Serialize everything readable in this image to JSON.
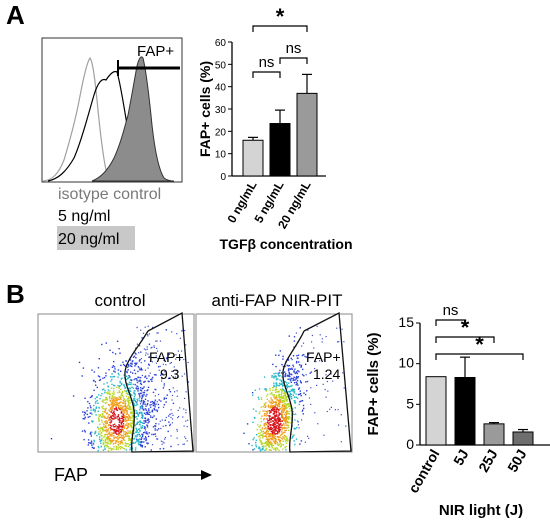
{
  "panel_labels": {
    "a": "A",
    "b": "B"
  },
  "panel_a": {
    "histogram": {
      "gate_label": "FAP+",
      "legend": [
        {
          "label": "isotype control",
          "color": "#7a7a7a",
          "shaded": false
        },
        {
          "label": "5 ng/ml",
          "color": "#000000",
          "shaded": false
        },
        {
          "label": "20 ng/ml",
          "color": "#000000",
          "shaded": true
        }
      ]
    }
  },
  "panel_b": {
    "flow": {
      "titles": {
        "left": "control",
        "right": "anti-FAP NIR-PIT"
      },
      "gates": [
        {
          "label": "FAP+",
          "value": "9.3"
        },
        {
          "label": "FAP+",
          "value": "1.24"
        }
      ],
      "axis_label": "FAP"
    }
  },
  "chart_data": [
    {
      "type": "bar",
      "categories": [
        "0 ng/mL",
        "5 ng/mL",
        "20 ng/mL"
      ],
      "values": [
        16,
        23.5,
        37
      ],
      "errors": [
        1.3,
        6.0,
        8.5
      ],
      "colors": [
        "#d4d4d4",
        "#000000",
        "#9a9a9a"
      ],
      "xlabel": "TGFβ concentration",
      "ylabel": "FAP+ cells (%)",
      "ylim": [
        0,
        60
      ],
      "yticks": [
        "0",
        "10",
        "20",
        "30",
        "40",
        "50",
        "60"
      ],
      "significance": [
        {
          "from": 0,
          "to": 1,
          "label": "ns"
        },
        {
          "from": 1,
          "to": 2,
          "label": "ns"
        },
        {
          "from": 0,
          "to": 2,
          "label": "*"
        }
      ]
    },
    {
      "type": "bar",
      "categories": [
        "control",
        "5J",
        "25J",
        "50J"
      ],
      "values": [
        8.4,
        8.3,
        2.6,
        1.6
      ],
      "errors": [
        0,
        2.5,
        0.15,
        0.3
      ],
      "colors": [
        "#d4d4d4",
        "#000000",
        "#9a9a9a",
        "#6e6e6e"
      ],
      "xlabel": "NIR light (J)",
      "ylabel": "FAP+ cells (%)",
      "ylim": [
        0,
        15
      ],
      "yticks": [
        "0",
        "5",
        "10",
        "15"
      ],
      "significance": [
        {
          "from": 0,
          "to": 1,
          "label": "ns"
        },
        {
          "from": 0,
          "to": 2,
          "label": "*"
        },
        {
          "from": 0,
          "to": 3,
          "label": "*"
        }
      ]
    }
  ]
}
